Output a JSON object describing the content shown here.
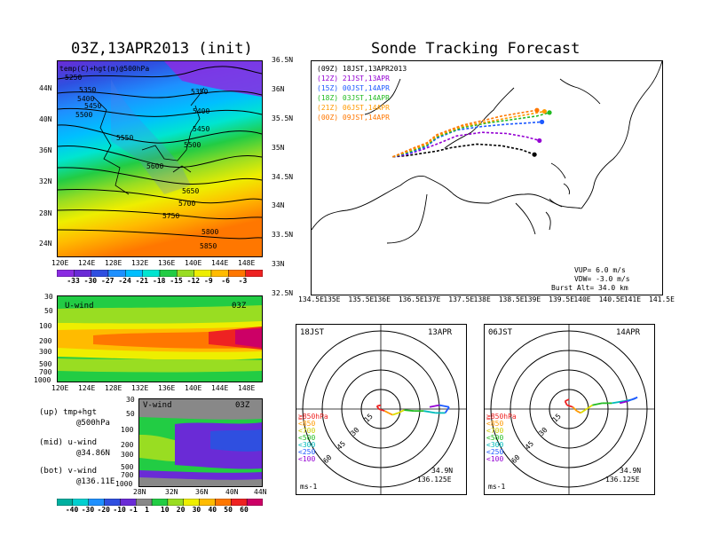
{
  "left_map": {
    "title": "03Z,13APR2013 (init)",
    "header": "temp(C)+hgt(m)@500hPa",
    "height_labels": [
      "5250",
      "5350",
      "5400",
      "5450",
      "5500",
      "5550",
      "5600",
      "5650",
      "5700",
      "5750",
      "5800",
      "5850",
      "5350",
      "5400",
      "5450",
      "5500"
    ],
    "lat_ticks": [
      "44N",
      "40N",
      "36N",
      "32N",
      "28N",
      "24N"
    ],
    "lon_ticks": [
      "120E",
      "124E",
      "128E",
      "132E",
      "136E",
      "140E",
      "144E",
      "148E"
    ],
    "colorbar": [
      "-33",
      "-30",
      "-27",
      "-24",
      "-21",
      "-18",
      "-15",
      "-12",
      "-9",
      "-6",
      "-3"
    ],
    "colorbar_colors": [
      "#8a2be2",
      "#6a2bd6",
      "#2f4fe0",
      "#1e90ff",
      "#00bfff",
      "#00e5d0",
      "#22cc44",
      "#99dd22",
      "#eeee00",
      "#ffbb00",
      "#ff7700",
      "#ee2222"
    ]
  },
  "uwind": {
    "label": "U-wind",
    "time": "03Z",
    "p_ticks": [
      "30",
      "50",
      "100",
      "200",
      "300",
      "500",
      "700",
      "1000"
    ],
    "lon_ticks": [
      "120E",
      "124E",
      "128E",
      "132E",
      "136E",
      "140E",
      "144E",
      "148E"
    ]
  },
  "vwind": {
    "label": "V-wind",
    "time": "03Z",
    "p_ticks": [
      "30",
      "50",
      "100",
      "200",
      "300",
      "500",
      "700",
      "1000"
    ],
    "lat_ticks": [
      "28N",
      "32N",
      "36N",
      "40N",
      "44N"
    ]
  },
  "legend": {
    "up": "(up) tmp+hgt",
    "up2": "@500hPa",
    "mid": "(mid) u-wind",
    "mid2": "@34.86N",
    "bot": "(bot) v-wind",
    "bot2": "@136.11E"
  },
  "wind_colorbar": {
    "labels": [
      "-40",
      "-30",
      "-20",
      "-10",
      "-1",
      "1",
      "10",
      "20",
      "30",
      "40",
      "50",
      "60"
    ],
    "colors": [
      "#00b0a0",
      "#00d0d0",
      "#1e90ff",
      "#2f4fe0",
      "#6a2bd6",
      "#888888",
      "#22cc44",
      "#99dd22",
      "#eeee00",
      "#ffbb00",
      "#ff7700",
      "#ee2222",
      "#cc0066"
    ]
  },
  "sonde": {
    "title": "Sonde Tracking Forecast",
    "launches": [
      {
        "label": "(09Z)  18JST,13APR2013",
        "color": "#000000"
      },
      {
        "label": "(12Z)  21JST,13APR",
        "color": "#9400d3"
      },
      {
        "label": "(15Z)  00JST,14APR",
        "color": "#1e5aff"
      },
      {
        "label": "(18Z)  03JST,14APR",
        "color": "#22bb22"
      },
      {
        "label": "(21Z)  06JST,14APR",
        "color": "#ff9900"
      },
      {
        "label": "(00Z)  09JST,14APR",
        "color": "#ff7700"
      }
    ],
    "lat_ticks": [
      "36.5N",
      "36N",
      "35.5N",
      "35N",
      "34.5N",
      "34N",
      "33.5N",
      "33N",
      "32.5N"
    ],
    "lon_ticks": [
      "134.5E",
      "135E",
      "135.5E",
      "136E",
      "136.5E",
      "137E",
      "137.5E",
      "138E",
      "138.5E",
      "139E",
      "139.5E",
      "140E",
      "140.5E",
      "141E",
      "141.5E"
    ],
    "params": {
      "vup": "VUP=  6.0 m/s",
      "vdw": "VDW= -3.0 m/s",
      "burst": "Burst Alt= 34.0 km"
    }
  },
  "chart_data": [
    {
      "type": "line",
      "title": "Sonde Tracking Forecast",
      "xlabel": "",
      "ylabel": "",
      "xlim": [
        134.5,
        141.5
      ],
      "ylim": [
        32.5,
        36.5
      ],
      "series": [
        {
          "name": "(09Z)  18JST,13APR2013",
          "color": "#000000",
          "x": [
            136.12,
            136.4,
            136.7,
            137.0,
            137.3,
            137.8,
            138.3,
            138.7,
            138.95
          ],
          "y": [
            34.86,
            34.88,
            34.92,
            34.96,
            35.02,
            35.08,
            35.05,
            34.98,
            34.9
          ]
        },
        {
          "name": "(12Z)  21JST,13APR",
          "color": "#9400d3",
          "x": [
            136.12,
            136.4,
            136.7,
            137.0,
            137.4,
            137.9,
            138.4,
            138.8,
            139.05
          ],
          "y": [
            34.86,
            34.9,
            34.98,
            35.08,
            35.22,
            35.28,
            35.26,
            35.2,
            35.14
          ]
        },
        {
          "name": "(15Z)  00JST,14APR",
          "color": "#1e5aff",
          "x": [
            136.12,
            136.5,
            136.8,
            137.0,
            137.4,
            137.9,
            138.4,
            138.8,
            139.1
          ],
          "y": [
            34.86,
            34.94,
            35.04,
            35.18,
            35.32,
            35.38,
            35.42,
            35.44,
            35.46
          ]
        },
        {
          "name": "(18Z)  03JST,14APR",
          "color": "#22bb22",
          "x": [
            136.12,
            136.5,
            136.8,
            137.0,
            137.5,
            138.0,
            138.5,
            139.0,
            139.25
          ],
          "y": [
            34.86,
            34.96,
            35.06,
            35.2,
            35.36,
            35.44,
            35.5,
            35.56,
            35.62
          ]
        },
        {
          "name": "(21Z)  06JST,14APR",
          "color": "#ff9900",
          "x": [
            136.12,
            136.5,
            136.8,
            137.0,
            137.5,
            138.0,
            138.5,
            138.9,
            139.15
          ],
          "y": [
            34.86,
            34.98,
            35.08,
            35.22,
            35.38,
            35.46,
            35.54,
            35.6,
            35.64
          ]
        },
        {
          "name": "(00Z)  09JST,14APR",
          "color": "#ff7700",
          "x": [
            136.12,
            136.5,
            136.8,
            137.0,
            137.5,
            137.9,
            138.3,
            138.7,
            139.0
          ],
          "y": [
            34.86,
            35.0,
            35.1,
            35.24,
            35.4,
            35.48,
            35.56,
            35.62,
            35.66
          ]
        }
      ]
    },
    {
      "type": "line",
      "title": "18JST 13APR",
      "rings_ms": [
        15,
        30,
        45,
        60
      ],
      "location": [
        "34.9N",
        "136.125E"
      ],
      "unit": "ms-1",
      "legend": [
        "≧850hPa",
        "<850",
        "<700",
        "<500",
        "<300",
        "<250",
        "<100"
      ],
      "legend_colors": [
        "#ee2222",
        "#ff9900",
        "#dddd00",
        "#22bb22",
        "#00bbbb",
        "#1e5aff",
        "#9400d3"
      ]
    },
    {
      "type": "line",
      "title": "06JST 14APR",
      "rings_ms": [
        15,
        30,
        45,
        60
      ],
      "location": [
        "34.9N",
        "136.125E"
      ],
      "unit": "ms-1",
      "legend": [
        "≧850hPa",
        "<850",
        "<700",
        "<500",
        "<300",
        "<250",
        "<100"
      ],
      "legend_colors": [
        "#ee2222",
        "#ff9900",
        "#dddd00",
        "#22bb22",
        "#00bbbb",
        "#1e5aff",
        "#9400d3"
      ]
    }
  ],
  "hodo1": {
    "time": "18JST",
    "date": "13APR",
    "lat": "34.9N",
    "lon": "136.125E",
    "unit": "ms-1",
    "rings": [
      "15",
      "30",
      "45",
      "60"
    ],
    "legend": [
      "≧850hPa",
      "<850",
      "<700",
      "<500",
      "<300",
      "<250",
      "<100"
    ]
  },
  "hodo2": {
    "time": "06JST",
    "date": "14APR",
    "lat": "34.9N",
    "lon": "136.125E",
    "unit": "ms-1",
    "rings": [
      "15",
      "30",
      "45",
      "60"
    ],
    "legend": [
      "≧850hPa",
      "<850",
      "<700",
      "<500",
      "<300",
      "<250",
      "<100"
    ]
  }
}
